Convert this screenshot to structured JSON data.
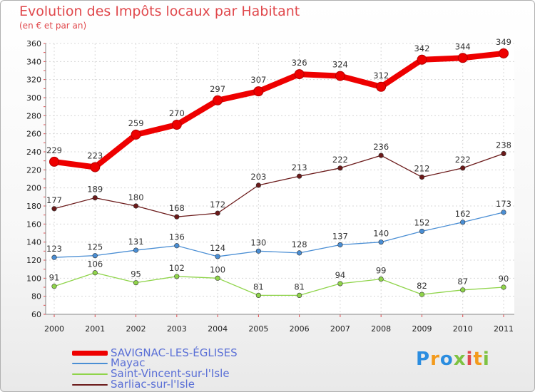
{
  "title": "Evolution des Impôts locaux par Habitant",
  "subtitle": "(en € et par an)",
  "logo": {
    "letters": [
      "P",
      "r",
      "o",
      "x",
      "i",
      "t",
      "i"
    ],
    "colors": [
      "#2b8de0",
      "#f39a1c",
      "#2b8de0",
      "#7ec242",
      "#e0484c",
      "#f39a1c",
      "#7ec242"
    ]
  },
  "chart_data": {
    "type": "line",
    "x": [
      "2000",
      "2001",
      "2002",
      "2003",
      "2004",
      "2005",
      "2006",
      "2007",
      "2008",
      "2009",
      "2010",
      "2011"
    ],
    "ylim": [
      60,
      360
    ],
    "yticks": [
      60,
      80,
      100,
      120,
      140,
      160,
      180,
      200,
      220,
      240,
      260,
      280,
      300,
      320,
      340,
      360
    ],
    "grid": true,
    "legend_position": "bottom-left",
    "series": [
      {
        "name": "SAVIGNAC-LES-ÉGLISES",
        "color": "#ee0000",
        "values": [
          229,
          223,
          259,
          270,
          297,
          307,
          326,
          324,
          312,
          342,
          344,
          349
        ]
      },
      {
        "name": "Mayac",
        "color": "#4a8ed4",
        "values": [
          123,
          125,
          131,
          136,
          124,
          130,
          128,
          137,
          140,
          152,
          162,
          173
        ]
      },
      {
        "name": "Saint-Vincent-sur-l'Isle",
        "color": "#8fd44a",
        "values": [
          91,
          106,
          95,
          102,
          100,
          81,
          81,
          94,
          99,
          82,
          87,
          90
        ]
      },
      {
        "name": "Sarliac-sur-l'Isle",
        "color": "#6b1a1a",
        "values": [
          177,
          189,
          180,
          168,
          172,
          203,
          213,
          222,
          236,
          212,
          222,
          238
        ]
      }
    ]
  }
}
